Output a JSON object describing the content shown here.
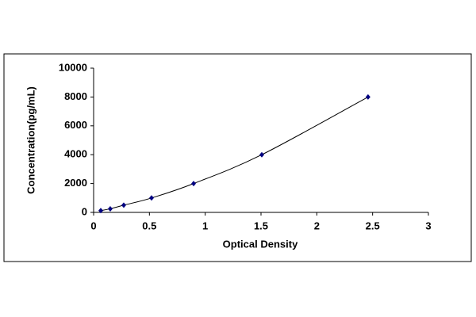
{
  "chart_data": {
    "type": "scatter",
    "x_label": "Optical Density",
    "y_label": "Concentration(pg/mL)",
    "x": [
      0.064,
      0.149,
      0.27,
      0.519,
      0.896,
      1.507,
      2.459
    ],
    "values": [
      125,
      250,
      500,
      1000,
      2000,
      4000,
      8000
    ],
    "color": "#000080",
    "line": true,
    "line_color": "#000000",
    "xlim": [
      0,
      3
    ],
    "xticks": [
      0,
      0.5,
      1,
      1.5,
      2,
      2.5,
      3
    ],
    "ylim": [
      0,
      10000
    ],
    "yticks": [
      0,
      2000,
      4000,
      6000,
      8000,
      10000
    ]
  }
}
